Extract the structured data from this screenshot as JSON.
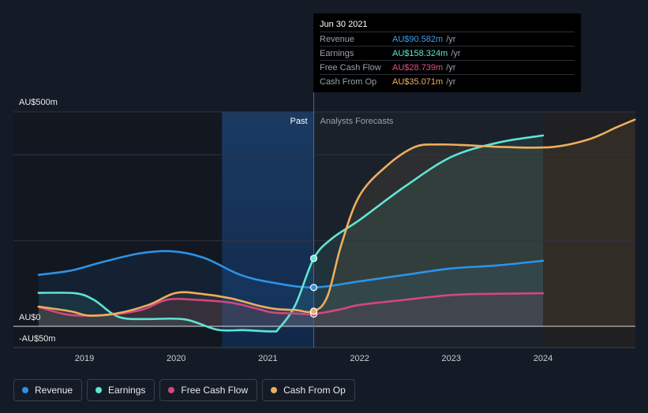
{
  "chart_data": {
    "type": "line",
    "y_labels": {
      "top": "AU$500m",
      "zero": "AU$0",
      "bottom": "-AU$50m"
    },
    "x_ticks": [
      "2019",
      "2020",
      "2021",
      "2022",
      "2023",
      "2024"
    ],
    "ylim": [
      -50,
      500
    ],
    "region_labels": {
      "past": "Past",
      "forecast": "Analysts Forecasts"
    },
    "series": [
      {
        "name": "Revenue",
        "color": "#2b93e8",
        "points": [
          [
            2018.5,
            120
          ],
          [
            2018.85,
            130
          ],
          [
            2019.2,
            150
          ],
          [
            2019.6,
            170
          ],
          [
            2019.95,
            175
          ],
          [
            2020.3,
            160
          ],
          [
            2020.7,
            120
          ],
          [
            2021.05,
            102
          ],
          [
            2021.5,
            90.6
          ],
          [
            2022.0,
            105
          ],
          [
            2022.5,
            120
          ],
          [
            2023.0,
            135
          ],
          [
            2023.5,
            142
          ],
          [
            2024.0,
            153
          ]
        ]
      },
      {
        "name": "Earnings",
        "color": "#5ee5d4",
        "points": [
          [
            2018.5,
            78
          ],
          [
            2018.9,
            77
          ],
          [
            2019.1,
            62
          ],
          [
            2019.3,
            30
          ],
          [
            2019.45,
            18
          ],
          [
            2019.7,
            17
          ],
          [
            2020.1,
            16
          ],
          [
            2020.45,
            -8
          ],
          [
            2020.75,
            -9
          ],
          [
            2021.05,
            -12
          ],
          [
            2021.12,
            -5
          ],
          [
            2021.3,
            50
          ],
          [
            2021.5,
            158.3
          ],
          [
            2021.7,
            205
          ],
          [
            2022.0,
            248
          ],
          [
            2022.5,
            327
          ],
          [
            2023.0,
            395
          ],
          [
            2023.5,
            428
          ],
          [
            2024.0,
            445
          ]
        ]
      },
      {
        "name": "Free Cash Flow",
        "color": "#d2477e",
        "points": [
          [
            2018.5,
            45
          ],
          [
            2018.8,
            28
          ],
          [
            2019.05,
            25
          ],
          [
            2019.4,
            30
          ],
          [
            2019.65,
            40
          ],
          [
            2019.9,
            62
          ],
          [
            2020.2,
            62
          ],
          [
            2020.6,
            55
          ],
          [
            2020.9,
            40
          ],
          [
            2021.05,
            32
          ],
          [
            2021.3,
            30
          ],
          [
            2021.5,
            28.7
          ],
          [
            2021.8,
            40
          ],
          [
            2022.0,
            50
          ],
          [
            2022.5,
            62
          ],
          [
            2023.0,
            73
          ],
          [
            2023.5,
            76
          ],
          [
            2024.0,
            77
          ]
        ]
      },
      {
        "name": "Cash From Op",
        "color": "#eeae5e",
        "points": [
          [
            2018.5,
            46
          ],
          [
            2018.85,
            35
          ],
          [
            2019.05,
            25
          ],
          [
            2019.35,
            30
          ],
          [
            2019.7,
            50
          ],
          [
            2020.0,
            78
          ],
          [
            2020.3,
            75
          ],
          [
            2020.6,
            65
          ],
          [
            2020.9,
            48
          ],
          [
            2021.1,
            40
          ],
          [
            2021.3,
            38
          ],
          [
            2021.5,
            35.1
          ],
          [
            2021.65,
            70
          ],
          [
            2021.8,
            190
          ],
          [
            2022.0,
            305
          ],
          [
            2022.3,
            375
          ],
          [
            2022.6,
            418
          ],
          [
            2022.85,
            424
          ],
          [
            2023.2,
            422
          ],
          [
            2023.6,
            418
          ],
          [
            2024.1,
            418
          ],
          [
            2024.5,
            436
          ],
          [
            2024.8,
            464
          ],
          [
            2025.0,
            482
          ]
        ]
      }
    ],
    "tooltip": {
      "date": "Jun 30 2021",
      "rows": [
        {
          "name": "Revenue",
          "value": "AU$90.582m",
          "unit": "/yr",
          "color": "#3aa0f0"
        },
        {
          "name": "Earnings",
          "value": "AU$158.324m",
          "unit": "/yr",
          "color": "#5ee5d4"
        },
        {
          "name": "Free Cash Flow",
          "value": "AU$28.739m",
          "unit": "/yr",
          "color": "#e0508a"
        },
        {
          "name": "Cash From Op",
          "value": "AU$35.071m",
          "unit": "/yr",
          "color": "#eeae5e"
        }
      ]
    },
    "grid": true,
    "legend_position": "bottom-left"
  },
  "legend": [
    {
      "label": "Revenue",
      "color": "#2b93e8"
    },
    {
      "label": "Earnings",
      "color": "#5ee5d4"
    },
    {
      "label": "Free Cash Flow",
      "color": "#d2477e"
    },
    {
      "label": "Cash From Op",
      "color": "#eeae5e"
    }
  ]
}
